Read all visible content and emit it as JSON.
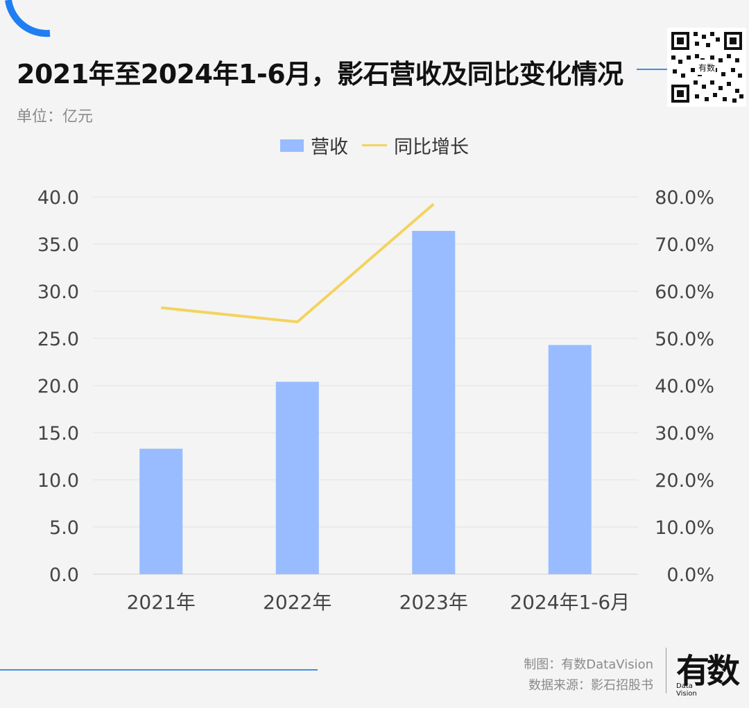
{
  "title": "2021年至2024年1-6月，影石营收及同比变化情况",
  "unit_label": "单位：亿元",
  "legend": [
    {
      "label": "营收",
      "type": "bar"
    },
    {
      "label": "同比增长",
      "type": "line"
    }
  ],
  "chart_data": {
    "type": "bar",
    "categories": [
      "2021年",
      "2022年",
      "2023年",
      "2024年1-6月"
    ],
    "series": [
      {
        "name": "营收",
        "type": "bar",
        "axis": "left",
        "values": [
          13.3,
          20.4,
          36.4,
          24.3
        ]
      },
      {
        "name": "同比增长",
        "type": "line",
        "axis": "right",
        "values": [
          56.5,
          53.5,
          78.5,
          null
        ]
      }
    ],
    "y_left": {
      "min": 0,
      "max": 40,
      "ticks": [
        "0.0",
        "5.0",
        "10.0",
        "15.0",
        "20.0",
        "25.0",
        "30.0",
        "35.0",
        "40.0"
      ]
    },
    "y_right": {
      "min": 0,
      "max": 80,
      "ticks": [
        "0.0%",
        "10.0%",
        "20.0%",
        "30.0%",
        "40.0%",
        "50.0%",
        "60.0%",
        "70.0%",
        "80.0%"
      ]
    },
    "grid": true,
    "legend_position": "top-center",
    "colors": {
      "bar": "#98bcff",
      "line": "#f4d35e",
      "grid": "#e2e2e2",
      "accent": "#3f8ee6"
    }
  },
  "footer": {
    "made_by": "制图：有数DataVision",
    "source": "数据来源：影石招股书",
    "logo_text": "有数",
    "logo_sub_1": "Data",
    "logo_sub_2": "Vision"
  },
  "qr_icon": "qr-code-icon",
  "qr_text": "有数"
}
